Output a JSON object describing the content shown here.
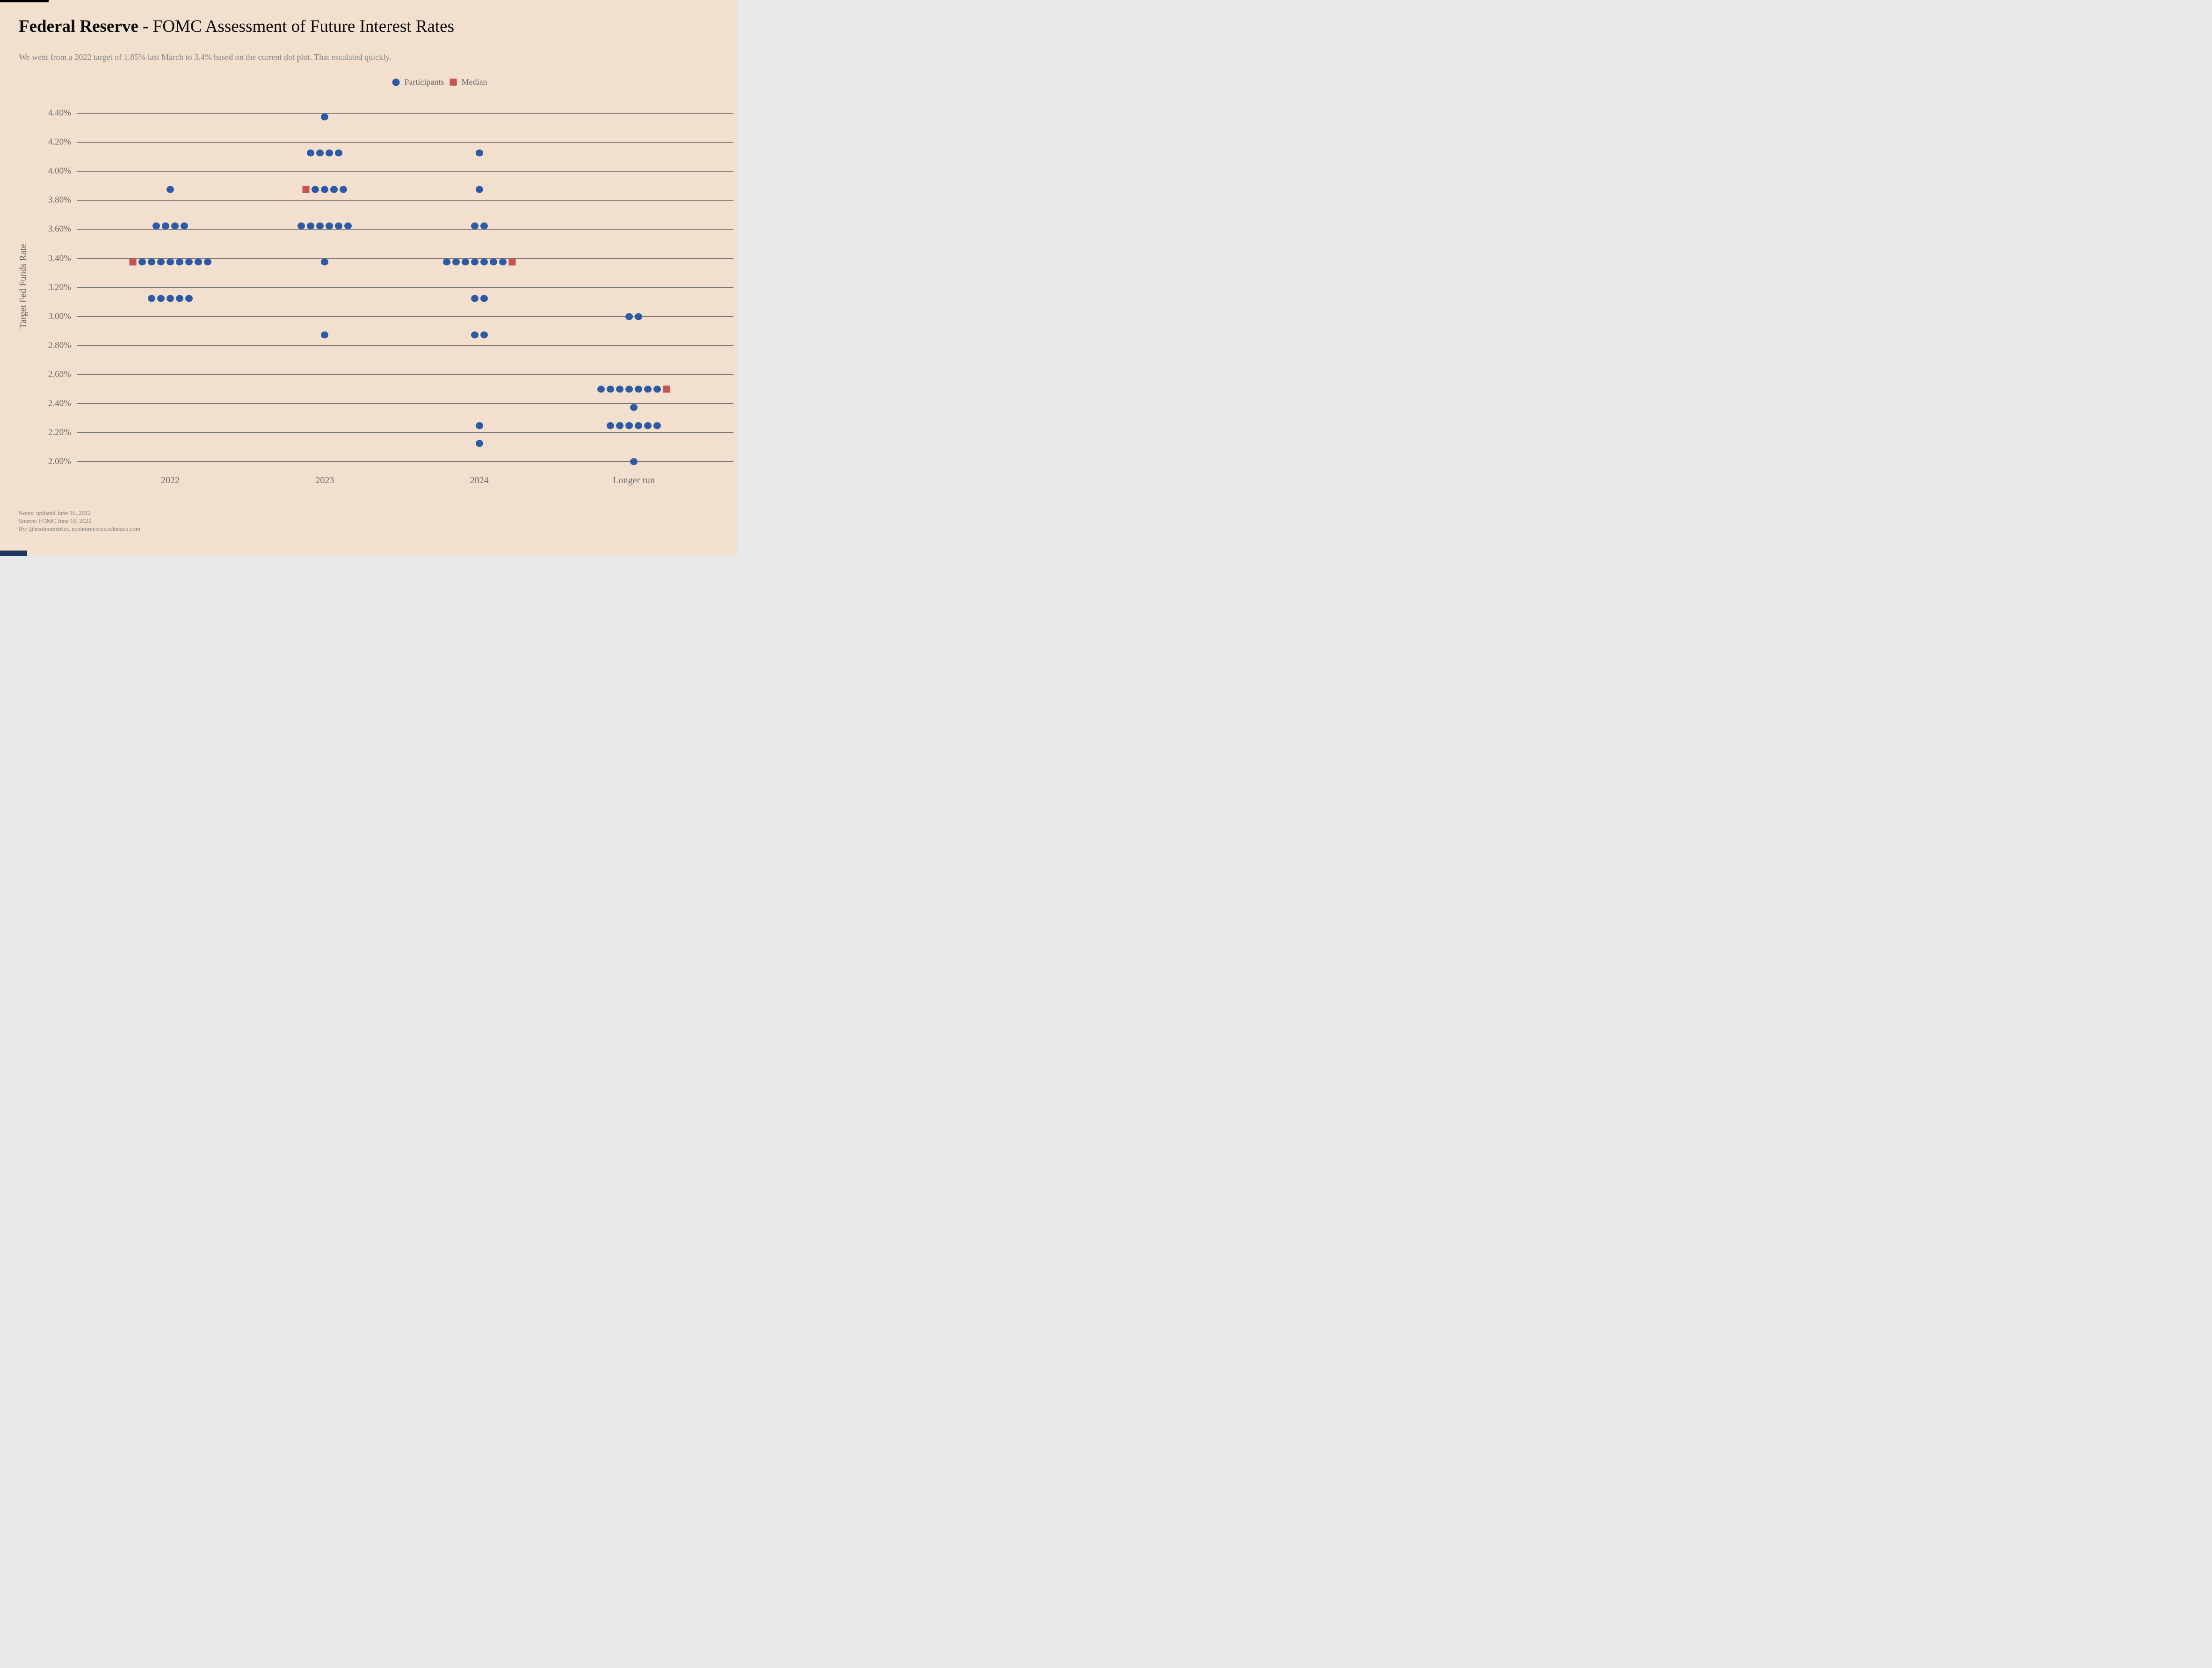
{
  "header": {
    "brand": "Federal Reserve",
    "title_rest": " - FOMC Assessment of Future Interest Rates",
    "subtitle": "We went from a 2022 target of 1.85% last March to 3.4% based on the current dot plot. That escalated quickly."
  },
  "legend": {
    "participants_label": "Participants",
    "median_label": "Median"
  },
  "chart_data": {
    "type": "scatter",
    "title": "Federal Reserve - FOMC Assessment of Future Interest Rates",
    "ylabel": "Target Fed Funds Rate",
    "xlabel": "",
    "categories": [
      "2022",
      "2023",
      "2024",
      "Longer run"
    ],
    "y_axis": {
      "label": "Target Fed Funds Rate",
      "min": 2.0,
      "max": 4.4,
      "step": 0.2,
      "ticks": [
        "4.40%",
        "4.20%",
        "4.00%",
        "3.80%",
        "3.60%",
        "3.40%",
        "3.20%",
        "3.00%",
        "2.80%",
        "2.60%",
        "2.40%",
        "2.20%",
        "2.00%"
      ]
    },
    "grid": true,
    "legend_position": "top-center",
    "series": [
      {
        "name": "Participants",
        "marker": "circle",
        "rows": [
          {
            "category": "2022",
            "rate": 3.875,
            "count": 1
          },
          {
            "category": "2022",
            "rate": 3.625,
            "count": 4
          },
          {
            "category": "2022",
            "rate": 3.375,
            "count": 8,
            "median_side": "left"
          },
          {
            "category": "2022",
            "rate": 3.125,
            "count": 5
          },
          {
            "category": "2023",
            "rate": 4.375,
            "count": 1
          },
          {
            "category": "2023",
            "rate": 4.125,
            "count": 4
          },
          {
            "category": "2023",
            "rate": 3.875,
            "count": 4,
            "median_side": "left"
          },
          {
            "category": "2023",
            "rate": 3.625,
            "count": 6
          },
          {
            "category": "2023",
            "rate": 3.375,
            "count": 1
          },
          {
            "category": "2023",
            "rate": 2.875,
            "count": 1
          },
          {
            "category": "2024",
            "rate": 4.125,
            "count": 1
          },
          {
            "category": "2024",
            "rate": 3.875,
            "count": 1
          },
          {
            "category": "2024",
            "rate": 3.625,
            "count": 2
          },
          {
            "category": "2024",
            "rate": 3.375,
            "count": 7,
            "median_side": "right"
          },
          {
            "category": "2024",
            "rate": 3.125,
            "count": 2
          },
          {
            "category": "2024",
            "rate": 2.875,
            "count": 2
          },
          {
            "category": "2024",
            "rate": 2.25,
            "count": 1
          },
          {
            "category": "2024",
            "rate": 2.125,
            "count": 1
          },
          {
            "category": "Longer run",
            "rate": 3.0,
            "count": 2
          },
          {
            "category": "Longer run",
            "rate": 2.5,
            "count": 7,
            "median_side": "right"
          },
          {
            "category": "Longer run",
            "rate": 2.375,
            "count": 1
          },
          {
            "category": "Longer run",
            "rate": 2.25,
            "count": 6
          },
          {
            "category": "Longer run",
            "rate": 2.0,
            "count": 1
          }
        ]
      },
      {
        "name": "Median",
        "marker": "square",
        "values": {
          "2022": 3.375,
          "2023": 3.875,
          "2024": 3.375,
          "Longer run": 2.5
        }
      }
    ]
  },
  "footer": {
    "notes": "Notes: updated June 16, 2022",
    "source": "Source: FOMC June 16, 2022",
    "by": "By: @ecoinometrics, ecoinometrics.substack.com"
  },
  "colors": {
    "background": "#f2dfcd",
    "participant": "#2d5aa6",
    "median": "#c5534f",
    "grid": "#7d7772",
    "title_text": "#0a0a0a",
    "subtitle_text": "#878787",
    "axis_text": "#6b6b6b",
    "notes_text": "#87827d",
    "top_mark": "#000000",
    "bottom_mark": "#1c3661"
  }
}
